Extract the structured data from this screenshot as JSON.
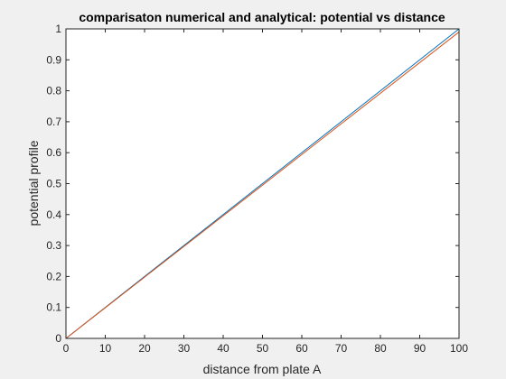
{
  "chart_data": {
    "type": "line",
    "title": "comparisaton numerical and analytical: potential vs distance",
    "xlabel": "distance from plate A",
    "ylabel": "potential profile",
    "xlim": [
      0,
      100
    ],
    "ylim": [
      0,
      1
    ],
    "xticks": [
      "0",
      "10",
      "20",
      "30",
      "40",
      "50",
      "60",
      "70",
      "80",
      "90",
      "100"
    ],
    "yticks": [
      "0",
      "0.1",
      "0.2",
      "0.3",
      "0.4",
      "0.5",
      "0.6",
      "0.7",
      "0.8",
      "0.9",
      "1"
    ],
    "grid": false,
    "series": [
      {
        "color": "#0072bd",
        "x": [
          0,
          100
        ],
        "y": [
          0,
          1.0
        ]
      },
      {
        "color": "#d95319",
        "x": [
          0,
          100
        ],
        "y": [
          0,
          0.99
        ]
      }
    ]
  }
}
